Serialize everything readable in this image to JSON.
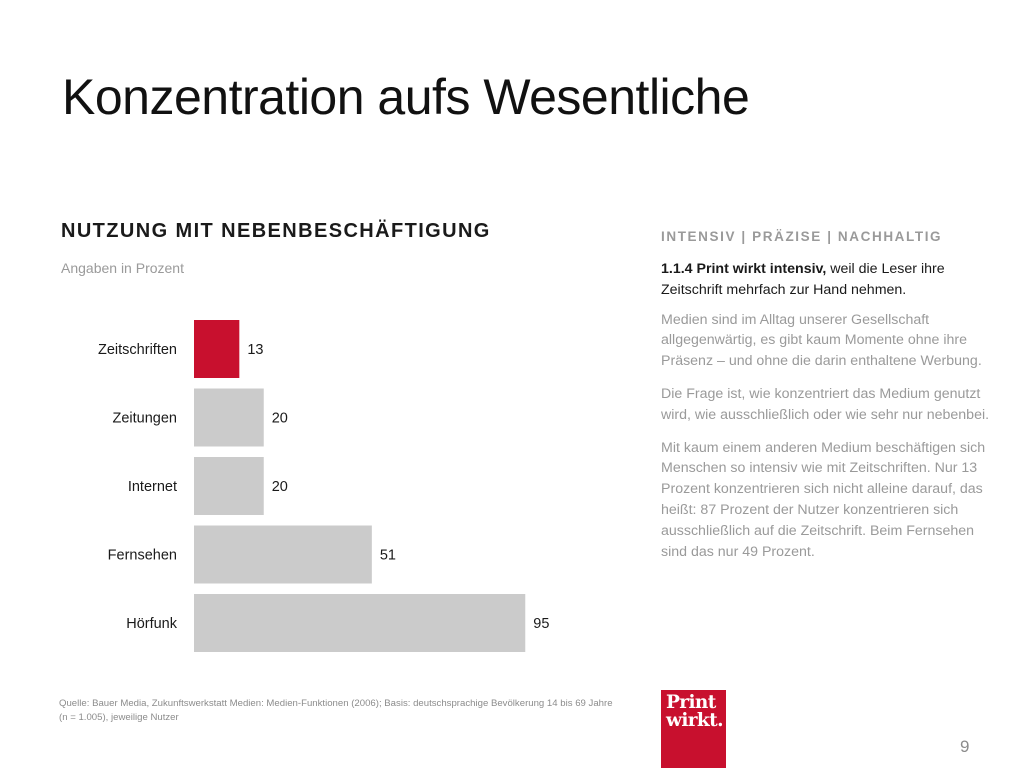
{
  "title": "Konzentration aufs Wesentliche",
  "chart": {
    "heading": "NUTZUNG MIT NEBENBESCHÄFTIGUNG",
    "subtitle": "Angaben in Prozent"
  },
  "chart_data": {
    "type": "bar",
    "orientation": "horizontal",
    "categories": [
      "Zeitschriften",
      "Zeitungen",
      "Internet",
      "Fernsehen",
      "Hörfunk"
    ],
    "values": [
      13,
      20,
      20,
      51,
      95
    ],
    "highlight_index": 0,
    "colors": {
      "highlight": "#c8102e",
      "default": "#cbcbcb"
    },
    "xlim": [
      0,
      100
    ],
    "grid": false,
    "legend": "none"
  },
  "source": "Quelle: Bauer Media, Zukunftswerkstatt Medien: Medien-Funktionen (2006); Basis: deutschsprachige Bevölkerung 14 bis 69 Jahre (n = 1.005), jeweilige Nutzer",
  "sidebar": {
    "kicker": "INTENSIV | PRÄZISE | NACHHALTIG",
    "lead_bold": "1.1.4 Print wirkt intensiv,",
    "lead_rest": " weil die Leser ihre Zeitschrift mehrfach zur Hand nehmen.",
    "paragraphs": [
      "Medien sind im Alltag unserer Gesellschaft allgegenwärtig, es gibt kaum Momente ohne ihre Präsenz – und ohne die darin enthaltene Werbung.",
      "Die Frage ist, wie konzentriert das Medium genutzt wird, wie ausschließlich oder wie sehr nur nebenbei.",
      "Mit kaum einem anderen Medium beschäftigen sich Menschen so intensiv wie mit Zeitschriften. Nur 13 Prozent konzentrieren sich nicht alleine darauf, das heißt: 87 Prozent der Nutzer konzentrieren sich ausschließlich auf die Zeitschrift. Beim Fernsehen sind das nur 49 Prozent."
    ]
  },
  "logo": {
    "line1": "Print",
    "line2": "wirkt."
  },
  "page_number": "9"
}
